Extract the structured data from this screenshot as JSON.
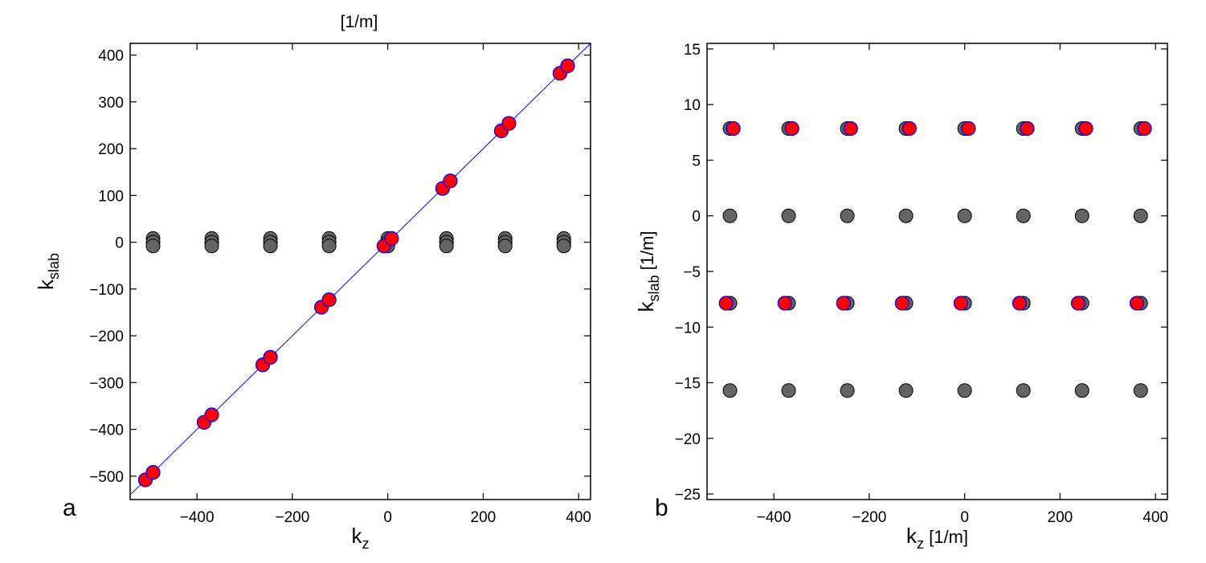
{
  "top_label": "[1/m]",
  "colors": {
    "gray_marker": "#646464",
    "red_marker": "#ff0000",
    "marker_edge_blue": "#0000ff",
    "line_blue": "#0000ff",
    "axis": "#000000"
  },
  "chart_data": [
    {
      "id": "a",
      "panel_letter": "a",
      "type": "scatter",
      "xlabel": "k",
      "xlabel_sub": "z",
      "xlabel_unit": "",
      "ylabel": "k",
      "ylabel_sub": "slab",
      "ylabel_unit": "",
      "xlim": [
        -540,
        425
      ],
      "ylim": [
        -550,
        425
      ],
      "xticks": [
        -400,
        -200,
        0,
        200,
        400
      ],
      "yticks": [
        -500,
        -400,
        -300,
        -200,
        -100,
        0,
        100,
        200,
        300,
        400
      ],
      "line": {
        "x": [
          -540,
          425
        ],
        "y": [
          -540,
          425
        ]
      },
      "gray_points": [
        {
          "x": -492,
          "y": 8
        },
        {
          "x": -492,
          "y": 0
        },
        {
          "x": -492,
          "y": -8
        },
        {
          "x": -369,
          "y": 8
        },
        {
          "x": -369,
          "y": 0
        },
        {
          "x": -369,
          "y": -8
        },
        {
          "x": -246,
          "y": 8
        },
        {
          "x": -246,
          "y": 0
        },
        {
          "x": -246,
          "y": -8
        },
        {
          "x": -123,
          "y": 8
        },
        {
          "x": -123,
          "y": 0
        },
        {
          "x": -123,
          "y": -8
        },
        {
          "x": 0,
          "y": 8
        },
        {
          "x": 0,
          "y": 0
        },
        {
          "x": 0,
          "y": -8
        },
        {
          "x": 123,
          "y": 8
        },
        {
          "x": 123,
          "y": 0
        },
        {
          "x": 123,
          "y": -8
        },
        {
          "x": 246,
          "y": 8
        },
        {
          "x": 246,
          "y": 0
        },
        {
          "x": 246,
          "y": -8
        },
        {
          "x": 369,
          "y": 8
        },
        {
          "x": 369,
          "y": 0
        },
        {
          "x": 369,
          "y": -8
        }
      ],
      "red_points": [
        {
          "x": -508,
          "y": -508
        },
        {
          "x": -492,
          "y": -492
        },
        {
          "x": -385,
          "y": -385
        },
        {
          "x": -369,
          "y": -369
        },
        {
          "x": -262,
          "y": -262
        },
        {
          "x": -246,
          "y": -246
        },
        {
          "x": -139,
          "y": -139
        },
        {
          "x": -123,
          "y": -123
        },
        {
          "x": -8,
          "y": -8
        },
        {
          "x": 8,
          "y": 8
        },
        {
          "x": 115,
          "y": 115
        },
        {
          "x": 131,
          "y": 131
        },
        {
          "x": 238,
          "y": 238
        },
        {
          "x": 254,
          "y": 254
        },
        {
          "x": 361,
          "y": 361
        },
        {
          "x": 377,
          "y": 377
        }
      ]
    },
    {
      "id": "b",
      "panel_letter": "b",
      "type": "scatter",
      "xlabel": "k",
      "xlabel_sub": "z",
      "xlabel_unit": " [1/m]",
      "ylabel": "k",
      "ylabel_sub": "slab",
      "ylabel_unit": " [1/m]",
      "xlim": [
        -540,
        425
      ],
      "ylim": [
        -25.5,
        15.5
      ],
      "xticks": [
        -400,
        -200,
        0,
        200,
        400
      ],
      "yticks": [
        -25,
        -20,
        -15,
        -10,
        -5,
        0,
        5,
        10,
        15
      ],
      "line": null,
      "gray_points": [
        {
          "x": -492,
          "y": 7.85
        },
        {
          "x": -369,
          "y": 7.85
        },
        {
          "x": -246,
          "y": 7.85
        },
        {
          "x": -123,
          "y": 7.85
        },
        {
          "x": 0,
          "y": 7.85
        },
        {
          "x": 123,
          "y": 7.85
        },
        {
          "x": 246,
          "y": 7.85
        },
        {
          "x": 369,
          "y": 7.85
        },
        {
          "x": -492,
          "y": 0
        },
        {
          "x": -369,
          "y": 0
        },
        {
          "x": -246,
          "y": 0
        },
        {
          "x": -123,
          "y": 0
        },
        {
          "x": 0,
          "y": 0
        },
        {
          "x": 123,
          "y": 0
        },
        {
          "x": 246,
          "y": 0
        },
        {
          "x": 369,
          "y": 0
        },
        {
          "x": -492,
          "y": -7.85
        },
        {
          "x": -369,
          "y": -7.85
        },
        {
          "x": -246,
          "y": -7.85
        },
        {
          "x": -123,
          "y": -7.85
        },
        {
          "x": 0,
          "y": -7.85
        },
        {
          "x": 123,
          "y": -7.85
        },
        {
          "x": 246,
          "y": -7.85
        },
        {
          "x": 369,
          "y": -7.85
        },
        {
          "x": -492,
          "y": -15.7
        },
        {
          "x": -369,
          "y": -15.7
        },
        {
          "x": -246,
          "y": -15.7
        },
        {
          "x": -123,
          "y": -15.7
        },
        {
          "x": 0,
          "y": -15.7
        },
        {
          "x": 123,
          "y": -15.7
        },
        {
          "x": 246,
          "y": -15.7
        },
        {
          "x": 369,
          "y": -15.7
        }
      ],
      "red_points": [
        {
          "x": -485,
          "y": 7.85
        },
        {
          "x": -362,
          "y": 7.85
        },
        {
          "x": -239,
          "y": 7.85
        },
        {
          "x": -116,
          "y": 7.85
        },
        {
          "x": 8,
          "y": 7.85
        },
        {
          "x": 131,
          "y": 7.85
        },
        {
          "x": 254,
          "y": 7.85
        },
        {
          "x": 377,
          "y": 7.85
        },
        {
          "x": -500,
          "y": -7.85
        },
        {
          "x": -377,
          "y": -7.85
        },
        {
          "x": -254,
          "y": -7.85
        },
        {
          "x": -131,
          "y": -7.85
        },
        {
          "x": -8,
          "y": -7.85
        },
        {
          "x": 115,
          "y": -7.85
        },
        {
          "x": 238,
          "y": -7.85
        },
        {
          "x": 361,
          "y": -7.85
        }
      ]
    }
  ]
}
